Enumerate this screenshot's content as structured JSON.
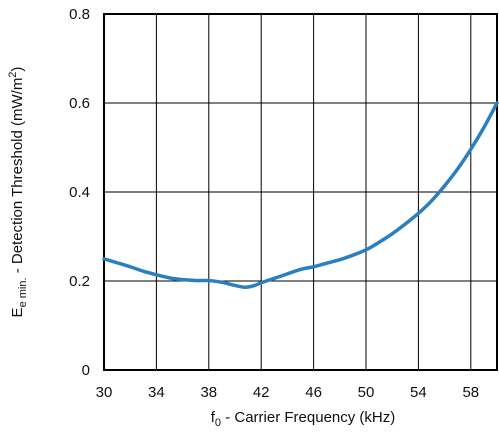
{
  "chart_data": {
    "type": "line",
    "x_label": {
      "main": "f",
      "sub": "0",
      "rest": " - Carrier Frequency (kHz)"
    },
    "y_label": {
      "main": "E",
      "sub": "e min.",
      "rest": " - Detection Threshold (mW/m",
      "sup": "2",
      "end": ")"
    },
    "xlim": [
      30,
      60
    ],
    "ylim": [
      0,
      0.8
    ],
    "x_ticks": [
      {
        "value": 30,
        "label": "30"
      },
      {
        "value": 34,
        "label": "34"
      },
      {
        "value": 38,
        "label": "38"
      },
      {
        "value": 42,
        "label": "42"
      },
      {
        "value": 46,
        "label": "46"
      },
      {
        "value": 50,
        "label": "50"
      },
      {
        "value": 54,
        "label": "54"
      },
      {
        "value": 58,
        "label": "58"
      }
    ],
    "y_ticks": [
      {
        "value": 0,
        "label": "0"
      },
      {
        "value": 0.2,
        "label": "0.2"
      },
      {
        "value": 0.4,
        "label": "0.4"
      },
      {
        "value": 0.6,
        "label": "0.6"
      },
      {
        "value": 0.8,
        "label": "0.8"
      }
    ],
    "grid_x": [
      30,
      34,
      38,
      42,
      46,
      50,
      54,
      58,
      60
    ],
    "grid_y": [
      0,
      0.2,
      0.4,
      0.6,
      0.8
    ],
    "grid": true,
    "line_color": "#2a7fc1",
    "series": [
      {
        "x": [
          30,
          31,
          32,
          33,
          34,
          35,
          36,
          37,
          38,
          39,
          40,
          40.8,
          41.5,
          42,
          43,
          44,
          45,
          46,
          47,
          48,
          49,
          50,
          51,
          52,
          53,
          54,
          55,
          56,
          57,
          58,
          59,
          60
        ],
        "values": [
          0.25,
          0.241,
          0.232,
          0.222,
          0.214,
          0.207,
          0.203,
          0.201,
          0.201,
          0.197,
          0.19,
          0.186,
          0.19,
          0.196,
          0.206,
          0.216,
          0.226,
          0.232,
          0.24,
          0.248,
          0.258,
          0.27,
          0.287,
          0.306,
          0.328,
          0.352,
          0.38,
          0.414,
          0.452,
          0.496,
          0.545,
          0.6
        ]
      }
    ]
  }
}
